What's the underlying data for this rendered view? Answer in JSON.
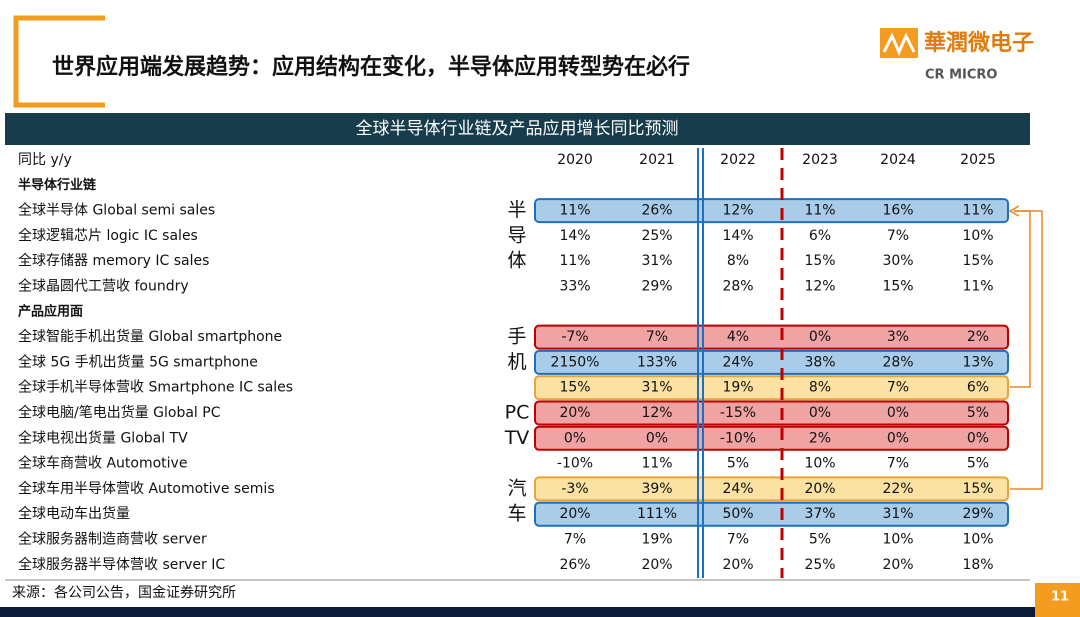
{
  "header": {
    "title": "世界应用端发展趋势：应用结构在变化，半导体应用转型势在必行"
  },
  "logo": {
    "cn": "華潤微电子",
    "en": "CR MICRO"
  },
  "table": {
    "title": "全球半导体行业链及产品应用增长同比预测",
    "columns": [
      "同比 y/y",
      "2020",
      "2021",
      "2022",
      "2023",
      "2024",
      "2025"
    ],
    "rows": [
      {
        "label": "半导体行业链"
      },
      {
        "label": "全球半导体 Global semi sales",
        "side": "半",
        "highlight": "blue",
        "values": [
          "11%",
          "26%",
          "12%",
          "11%",
          "16%",
          "11%"
        ]
      },
      {
        "label": "全球逻辑芯片 logic IC sales",
        "side": "导",
        "values": [
          "14%",
          "25%",
          "14%",
          "6%",
          "7%",
          "10%"
        ]
      },
      {
        "label": "全球存储器 memory IC sales",
        "side": "体",
        "values": [
          "11%",
          "31%",
          "8%",
          "15%",
          "30%",
          "15%"
        ]
      },
      {
        "label": "全球晶圆代工营收 foundry",
        "values": [
          "33%",
          "29%",
          "28%",
          "12%",
          "15%",
          "11%"
        ]
      },
      {
        "label": "产品应用面"
      },
      {
        "label": "全球智能手机出货量 Global smartphone",
        "side": "手",
        "highlight": "red",
        "values": [
          "-7%",
          "7%",
          "4%",
          "0%",
          "3%",
          "2%"
        ]
      },
      {
        "label": "全球 5G 手机出货量 5G smartphone",
        "side": "机",
        "highlight": "blue",
        "values": [
          "2150%",
          "133%",
          "24%",
          "38%",
          "28%",
          "13%"
        ]
      },
      {
        "label": "全球手机半导体营收 Smartphone IC sales",
        "highlight": "yellow",
        "values": [
          "15%",
          "31%",
          "19%",
          "8%",
          "7%",
          "6%"
        ]
      },
      {
        "label": "全球电脑/笔电出货量 Global PC",
        "side": "PC",
        "highlight": "red",
        "values": [
          "20%",
          "12%",
          "-15%",
          "0%",
          "0%",
          "5%"
        ]
      },
      {
        "label": "全球电视出货量 Global TV",
        "side": "TV",
        "highlight": "red",
        "values": [
          "0%",
          "0%",
          "-10%",
          "2%",
          "0%",
          "0%"
        ]
      },
      {
        "label": "全球车商营收 Automotive",
        "values": [
          "-10%",
          "11%",
          "5%",
          "10%",
          "7%",
          "5%"
        ]
      },
      {
        "label": "全球车用半导体营收 Automotive semis",
        "side": "汽",
        "highlight": "yellow",
        "values": [
          "-3%",
          "39%",
          "24%",
          "20%",
          "22%",
          "15%"
        ]
      },
      {
        "label": "全球电动车出货量",
        "side": "车",
        "highlight": "blue",
        "values": [
          "20%",
          "111%",
          "50%",
          "37%",
          "31%",
          "29%"
        ]
      },
      {
        "label": "全球服务器制造商营收 server",
        "values": [
          "7%",
          "19%",
          "7%",
          "5%",
          "10%",
          "10%"
        ]
      },
      {
        "label": "全球服务器半导体营收 server IC",
        "values": [
          "26%",
          "20%",
          "20%",
          "25%",
          "20%",
          "18%"
        ]
      }
    ]
  },
  "footer": {
    "source": "来源：各公司公告，国金证券研究所",
    "page": "11"
  }
}
